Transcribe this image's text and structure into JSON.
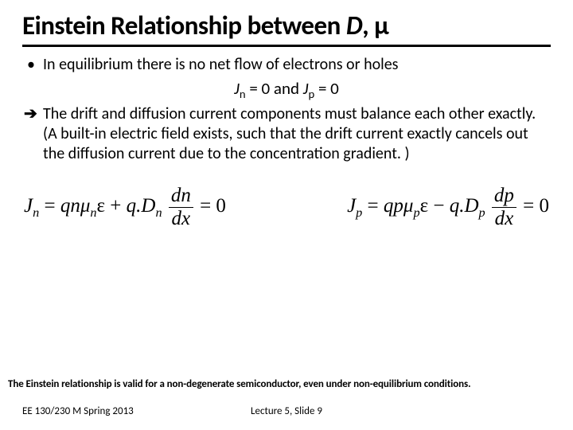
{
  "title_prefix": "Einstein Relationship between ",
  "title_D": "D",
  "title_comma": ", ",
  "title_mu": "μ",
  "bullet_text": "In equilibrium there is no net flow of electrons or holes",
  "eq_Jn": "J",
  "eq_n": "n",
  "eq_mid1": " = 0   and   ",
  "eq_Jp": "J",
  "eq_p": "p",
  "eq_mid2": " = 0",
  "arrow_glyph": "➔",
  "arrow_text": "The drift and diffusion current components must balance each other exactly.  (A built-in electric field exists, such that the drift current exactly cancels out the diffusion current due to the concentration gradient. )",
  "f1_a": "J",
  "f1_b": "n",
  "f1_c": " = qnμ",
  "f1_d": "n",
  "f1_e": "ε + q.D",
  "f1_f": "n",
  "f1_num": "dn",
  "f1_den": "dx",
  "f1_g": " = 0",
  "f2_a": "J",
  "f2_b": "p",
  "f2_c": " = qpμ",
  "f2_d": "p",
  "f2_e": "ε − q.D",
  "f2_f": "p",
  "f2_num": "dp",
  "f2_den": "dx",
  "f2_g": " = 0",
  "footnote": "The Einstein relationship is valid for a non-degenerate semiconductor,  even under non-equilibrium conditions.",
  "footer_left": "EE 130/230 M Spring 2013",
  "footer_mid": "Lecture 5, Slide 9",
  "colors": {
    "text": "#000000",
    "bg": "#ffffff"
  }
}
